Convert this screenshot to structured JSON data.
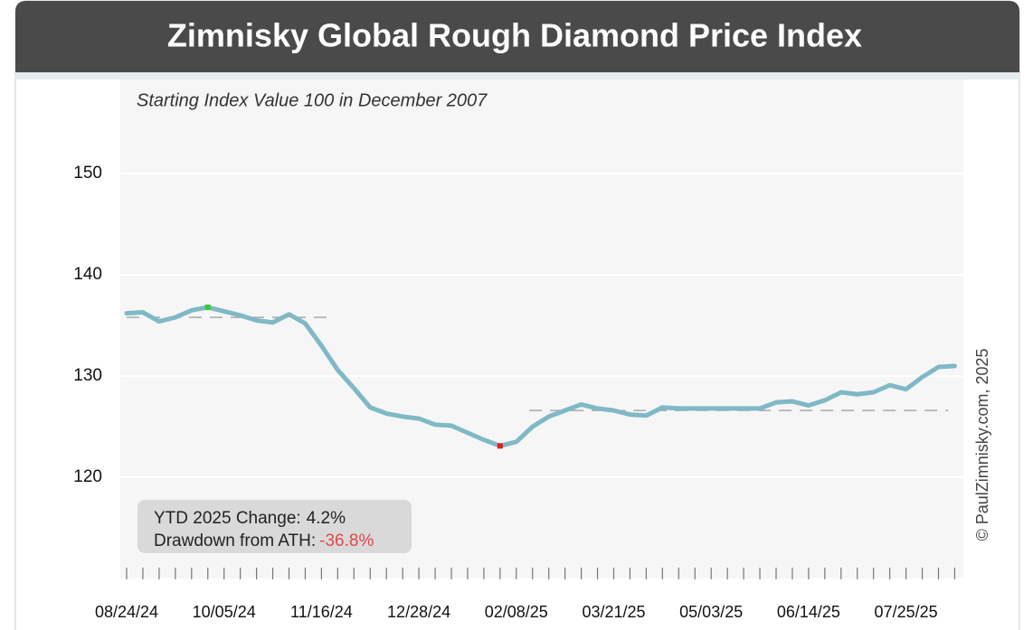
{
  "chart_data": {
    "type": "line",
    "title": "Zimnisky Global Rough Diamond Price Index",
    "subtitle": "Starting Index Value 100 in December 2007",
    "credit": "© PaulZimnisky.com, 2025",
    "categories": [
      "08/24/24",
      null,
      null,
      null,
      null,
      null,
      "10/05/24",
      null,
      null,
      null,
      null,
      null,
      "11/16/24",
      null,
      null,
      null,
      null,
      null,
      "12/28/24",
      null,
      null,
      null,
      null,
      null,
      "02/08/25",
      null,
      null,
      null,
      null,
      null,
      "03/21/25",
      null,
      null,
      null,
      null,
      null,
      "05/03/25",
      null,
      null,
      null,
      null,
      null,
      "06/14/25",
      null,
      null,
      null,
      null,
      null,
      "07/25/25",
      null,
      null,
      null
    ],
    "values": [
      136.2,
      136.3,
      135.4,
      135.8,
      136.5,
      136.8,
      136.4,
      136.0,
      135.5,
      135.3,
      136.1,
      135.2,
      133.0,
      130.6,
      128.8,
      126.9,
      126.3,
      126.0,
      125.8,
      125.2,
      125.1,
      124.4,
      123.7,
      123.1,
      123.5,
      125.0,
      126.0,
      126.6,
      127.2,
      126.8,
      126.6,
      126.2,
      126.1,
      126.9,
      126.8,
      126.8,
      126.8,
      126.8,
      126.8,
      126.8,
      127.4,
      127.5,
      127.1,
      127.6,
      128.4,
      128.2,
      128.4,
      129.1,
      128.7,
      129.9,
      130.9,
      131.0
    ],
    "color": "#7fb8c6",
    "ylim": [
      110,
      159.3
    ],
    "yticks": [
      120,
      130,
      140,
      150
    ],
    "grid": true,
    "highlight_points": [
      {
        "index": 5,
        "color": "#33cc33"
      },
      {
        "index": 23,
        "color": "#dd2222"
      }
    ],
    "reference_lines": [
      {
        "value": 135.8,
        "start": 0,
        "end": 12.8
      },
      {
        "value": 126.6,
        "start": 24.8,
        "end": 50.6
      }
    ],
    "annotation": {
      "ytd_label": "YTD 2025 Change:",
      "ytd_value": "4.2%",
      "drawdown_label": "Drawdown from ATH:",
      "drawdown_value": "-36.8%",
      "drawdown_color": "#e0474c"
    }
  }
}
